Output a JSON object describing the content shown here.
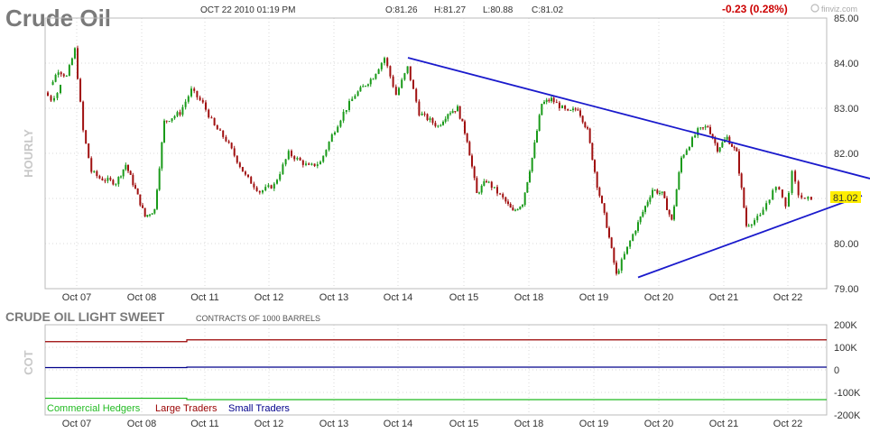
{
  "header": {
    "title": "Crude Oil",
    "datetime": "OCT 22 2010 01:19 PM",
    "open": "O:81.26",
    "high": "H:81.27",
    "low": "L:80.88",
    "close": "C:81.02",
    "change": "-0.23 (0.28%)",
    "brand": "finviz.com"
  },
  "colors": {
    "up": "#1a9a1a",
    "down": "#a01010",
    "trend": "#1a1acc",
    "large_traders": "#990000",
    "small_traders": "#00008b",
    "commercial": "#22bb22",
    "grid": "#d8d8d8",
    "highlight": "#ffee00",
    "change": "#cc0000"
  },
  "chart_data": [
    {
      "type": "candlestick",
      "panel": "price",
      "side_label": "HOURLY",
      "interval": "hourly",
      "ylim": [
        79,
        85
      ],
      "yticks": [
        "85.00",
        "84.00",
        "83.00",
        "82.00",
        "81.00",
        "80.00",
        "79.00"
      ],
      "x_categories": [
        "Oct 07",
        "Oct 08",
        "Oct 11",
        "Oct 12",
        "Oct 13",
        "Oct 14",
        "Oct 15",
        "Oct 18",
        "Oct 19",
        "Oct 20",
        "Oct 21",
        "Oct 22"
      ],
      "last_price_label": "81.02",
      "trendlines": [
        {
          "from": {
            "date": "Oct 14",
            "value": 84.12
          },
          "to": {
            "date": "Oct 22",
            "value": 81.7
          },
          "color": "#1a1acc"
        },
        {
          "from": {
            "date": "Oct 19",
            "value": 79.25
          },
          "to": {
            "date": "Oct 22",
            "value": 81.02
          },
          "color": "#1a1acc"
        }
      ],
      "close_path": [
        {
          "date": "Oct 06",
          "value": 83.35
        },
        {
          "date": "Oct 06",
          "value": 83.2
        },
        {
          "date": "Oct 06",
          "value": 83.35
        },
        {
          "date": "Oct 07",
          "value": 83.5
        },
        {
          "date": "Oct 07",
          "value": 83.85
        },
        {
          "date": "Oct 07",
          "value": 83.7
        },
        {
          "date": "Oct 07",
          "value": 84.3
        },
        {
          "date": "Oct 07",
          "value": 82.5
        },
        {
          "date": "Oct 07",
          "value": 81.6
        },
        {
          "date": "Oct 07",
          "value": 81.45
        },
        {
          "date": "Oct 08",
          "value": 81.35
        },
        {
          "date": "Oct 08",
          "value": 81.75
        },
        {
          "date": "Oct 08",
          "value": 81.2
        },
        {
          "date": "Oct 08",
          "value": 80.6
        },
        {
          "date": "Oct 08",
          "value": 80.75
        },
        {
          "date": "Oct 08",
          "value": 82.7
        },
        {
          "date": "Oct 11",
          "value": 82.9
        },
        {
          "date": "Oct 11",
          "value": 83.4
        },
        {
          "date": "Oct 11",
          "value": 83.1
        },
        {
          "date": "Oct 11",
          "value": 82.6
        },
        {
          "date": "Oct 11",
          "value": 82.3
        },
        {
          "date": "Oct 12",
          "value": 81.5
        },
        {
          "date": "Oct 12",
          "value": 81.15
        },
        {
          "date": "Oct 12",
          "value": 81.3
        },
        {
          "date": "Oct 12",
          "value": 82.0
        },
        {
          "date": "Oct 13",
          "value": 81.7
        },
        {
          "date": "Oct 13",
          "value": 81.8
        },
        {
          "date": "Oct 13",
          "value": 82.4
        },
        {
          "date": "Oct 13",
          "value": 82.9
        },
        {
          "date": "Oct 13",
          "value": 83.3
        },
        {
          "date": "Oct 14",
          "value": 83.7
        },
        {
          "date": "Oct 14",
          "value": 84.12
        },
        {
          "date": "Oct 14",
          "value": 83.3
        },
        {
          "date": "Oct 14",
          "value": 83.9
        },
        {
          "date": "Oct 14",
          "value": 82.9
        },
        {
          "date": "Oct 15",
          "value": 82.6
        },
        {
          "date": "Oct 15",
          "value": 82.9
        },
        {
          "date": "Oct 15",
          "value": 83.0
        },
        {
          "date": "Oct 15",
          "value": 82.3
        },
        {
          "date": "Oct 15",
          "value": 81.1
        },
        {
          "date": "Oct 15",
          "value": 81.4
        },
        {
          "date": "Oct 18",
          "value": 81.0
        },
        {
          "date": "Oct 18",
          "value": 80.7
        },
        {
          "date": "Oct 18",
          "value": 80.9
        },
        {
          "date": "Oct 18",
          "value": 81.9
        },
        {
          "date": "Oct 18",
          "value": 83.1
        },
        {
          "date": "Oct 18",
          "value": 83.2
        },
        {
          "date": "Oct 19",
          "value": 82.9
        },
        {
          "date": "Oct 19",
          "value": 83.0
        },
        {
          "date": "Oct 19",
          "value": 82.5
        },
        {
          "date": "Oct 19",
          "value": 81.3
        },
        {
          "date": "Oct 19",
          "value": 80.4
        },
        {
          "date": "Oct 19",
          "value": 79.3
        },
        {
          "date": "Oct 20",
          "value": 80.2
        },
        {
          "date": "Oct 20",
          "value": 80.7
        },
        {
          "date": "Oct 20",
          "value": 81.2
        },
        {
          "date": "Oct 20",
          "value": 81.1
        },
        {
          "date": "Oct 20",
          "value": 80.5
        },
        {
          "date": "Oct 20",
          "value": 81.9
        },
        {
          "date": "Oct 21",
          "value": 82.5
        },
        {
          "date": "Oct 21",
          "value": 82.6
        },
        {
          "date": "Oct 21",
          "value": 82.1
        },
        {
          "date": "Oct 21",
          "value": 82.35
        },
        {
          "date": "Oct 21",
          "value": 82.0
        },
        {
          "date": "Oct 21",
          "value": 80.4
        },
        {
          "date": "Oct 22",
          "value": 80.6
        },
        {
          "date": "Oct 22",
          "value": 80.9
        },
        {
          "date": "Oct 22",
          "value": 81.15
        },
        {
          "date": "Oct 22",
          "value": 81.25
        },
        {
          "date": "Oct 22",
          "value": 80.8
        },
        {
          "date": "Oct 22",
          "value": 81.55
        },
        {
          "date": "Oct 22",
          "value": 81.1
        },
        {
          "date": "Oct 22",
          "value": 80.95
        },
        {
          "date": "Oct 22",
          "value": 81.02
        }
      ]
    },
    {
      "type": "line",
      "panel": "cot",
      "title": "CRUDE OIL LIGHT SWEET",
      "subtitle": "CONTRACTS OF 1000 BARRELS",
      "side_label": "COT",
      "ylim": [
        -200000,
        200000
      ],
      "yticks": [
        "200K",
        "100K",
        "0",
        "-100K",
        "-200K"
      ],
      "x_categories": [
        "Oct 07",
        "Oct 08",
        "Oct 11",
        "Oct 12",
        "Oct 13",
        "Oct 14",
        "Oct 15",
        "Oct 18",
        "Oct 19",
        "Oct 20",
        "Oct 21",
        "Oct 22"
      ],
      "series": [
        {
          "name": "Commercial Hedgers",
          "color": "#22bb22",
          "values": [
            -126000,
            -126000,
            -132000,
            -132000,
            -132000,
            -132000,
            -132000,
            -132000,
            -132000,
            -132000,
            -132000,
            -132000
          ]
        },
        {
          "name": "Large Traders",
          "color": "#990000",
          "values": [
            125000,
            125000,
            133000,
            133000,
            133000,
            133000,
            133000,
            133000,
            133000,
            133000,
            133000,
            133000
          ]
        },
        {
          "name": "Small Traders",
          "color": "#00008b",
          "values": [
            10000,
            10000,
            12000,
            12000,
            12000,
            12000,
            12000,
            12000,
            12000,
            12000,
            12000,
            12000
          ]
        }
      ]
    }
  ]
}
